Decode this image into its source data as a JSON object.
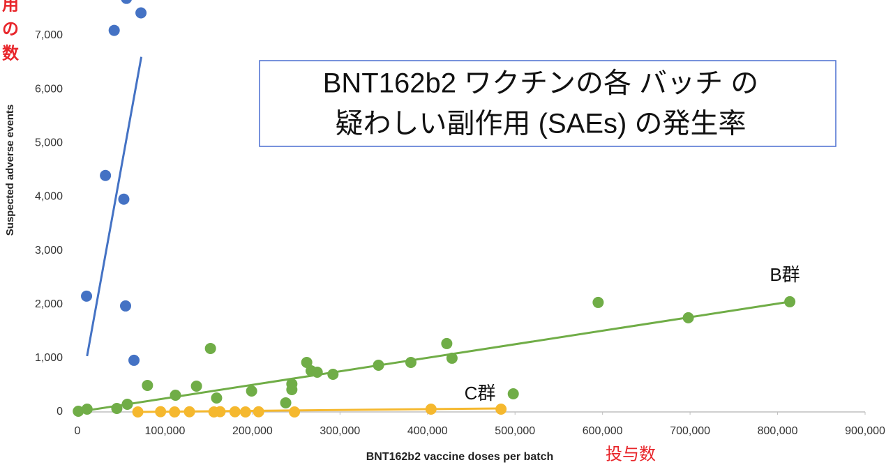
{
  "chart_data": {
    "type": "scatter",
    "title": [
      "BNT162b2 ワクチンの各 バッチ の",
      "疑わしい副作用 (SAEs) の発生率"
    ],
    "x_label": "BNT162b2 vaccine doses per batch",
    "x_label_ja": "投与数",
    "y_label": "Suspected adverse events",
    "y_label_ja": [
      "用",
      "の",
      "数"
    ],
    "xlim": [
      0,
      900000
    ],
    "ylim": [
      0,
      7660
    ],
    "xticks": [
      0,
      {
        "value": 100000,
        "label": "100,000"
      },
      {
        "value": 200000,
        "label": "200,000"
      },
      {
        "value": 300000,
        "label": "300,000"
      },
      {
        "value": 400000,
        "label": "400,000"
      },
      {
        "value": 500000,
        "label": "500,000"
      },
      {
        "value": 600000,
        "label": "600,000"
      },
      {
        "value": 700000,
        "label": "700,000"
      },
      {
        "value": 800000,
        "label": "800,000"
      },
      {
        "value": 900000,
        "label": "900,000"
      }
    ],
    "yticks": [
      0,
      {
        "value": 1000,
        "label": "1,000"
      },
      {
        "value": 2000,
        "label": "2,000"
      },
      {
        "value": 3000,
        "label": "3,000"
      },
      {
        "value": 4000,
        "label": "4,000"
      },
      {
        "value": 5000,
        "label": "5,000"
      },
      {
        "value": 6000,
        "label": "6,000"
      },
      {
        "value": 7000,
        "label": "7,000"
      }
    ],
    "series": [
      {
        "color": "#4472c4",
        "x": [
          10400,
          32000,
          42000,
          53000,
          56000,
          55000,
          72600,
          64600
        ],
        "y": [
          2153,
          4397,
          7095,
          3956,
          7690,
          1971,
          7420,
          960
        ],
        "trend": {
          "x": [
            11000,
            73000
          ],
          "y": [
            1038,
            6602
          ]
        }
      },
      {
        "name": "B群",
        "color": "#70ad47",
        "x": [
          1000,
          11000,
          45000,
          57000,
          80000,
          112000,
          136000,
          152000,
          159000,
          199000,
          238000,
          245000,
          245000,
          262000,
          267000,
          274000,
          292000,
          344000,
          381000,
          422000,
          428000,
          498000,
          595000,
          698000,
          814000
        ],
        "y": [
          13,
          52,
          65,
          143,
          493,
          311,
          480,
          1180,
          259,
          389,
          169,
          519,
          415,
          921,
          765,
          739,
          700,
          869,
          921,
          1271,
          999,
          337,
          2036,
          1751,
          2049
        ],
        "trend": {
          "x": [
            0,
            814000
          ],
          "y": [
            0,
            2049
          ]
        }
      },
      {
        "name": "C群",
        "color": "#f5b82e",
        "x": [
          69000,
          95000,
          111000,
          128000,
          156000,
          163000,
          180000,
          192000,
          207000,
          248000,
          404000,
          484000
        ],
        "y": [
          0,
          5,
          0,
          3,
          0,
          5,
          3,
          0,
          3,
          0,
          52,
          52
        ],
        "trend": {
          "x": [
            69000,
            484000
          ],
          "y": [
            0,
            65
          ]
        }
      }
    ]
  }
}
